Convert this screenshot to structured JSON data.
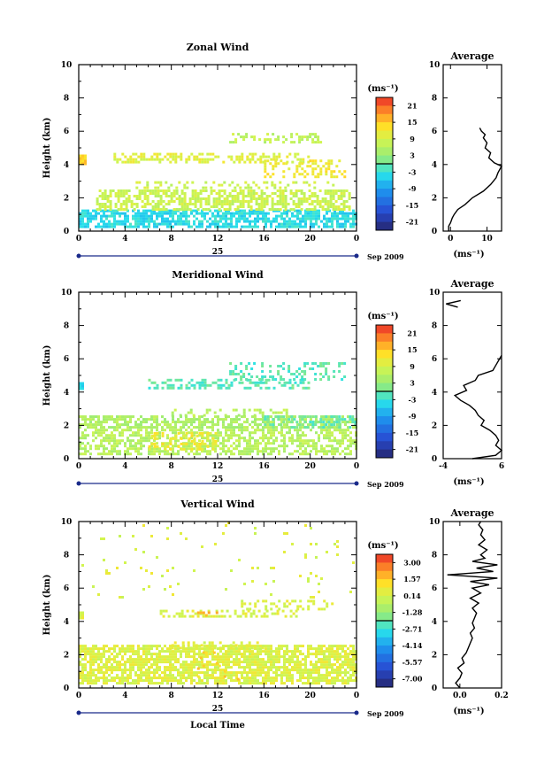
{
  "chart_data": [
    {
      "type": "heatmap",
      "title": "Zonal Wind",
      "ylabel": "Height (km)",
      "xticks": [
        "0",
        "4",
        "8",
        "12",
        "16",
        "20",
        "0"
      ],
      "yticks": [
        "0",
        "2",
        "4",
        "6",
        "8",
        "10"
      ],
      "xlim": [
        0,
        24
      ],
      "ylim": [
        0,
        10
      ],
      "date_day": "25",
      "date_month": "Sep 2009",
      "colorbar": {
        "unit": "(ms⁻¹)",
        "ticks": [
          "21",
          "15",
          "9",
          "3",
          "-3",
          "-9",
          "-15",
          "-21"
        ],
        "range": [
          -24,
          24
        ]
      },
      "layers": [
        {
          "x0": 0.0,
          "x1": 24.0,
          "y0": 0.3,
          "y1": 1.3,
          "value": -4,
          "density": 0.72
        },
        {
          "x0": 1.5,
          "x1": 23.5,
          "y0": 1.3,
          "y1": 2.5,
          "value": 8,
          "density": 0.62
        },
        {
          "x0": 4.0,
          "x1": 22.0,
          "y0": 2.5,
          "y1": 3.0,
          "value": 8,
          "density": 0.25
        },
        {
          "x0": 3.0,
          "x1": 20.0,
          "y0": 4.1,
          "y1": 4.7,
          "value": 10,
          "density": 0.45
        },
        {
          "x0": 16.0,
          "x1": 23.0,
          "y0": 3.3,
          "y1": 4.3,
          "value": 12,
          "density": 0.35
        },
        {
          "x0": 13.0,
          "x1": 21.0,
          "y0": 5.3,
          "y1": 5.9,
          "value": 7,
          "density": 0.35
        },
        {
          "x0": 0.0,
          "x1": 0.5,
          "y0": 4.0,
          "y1": 4.6,
          "value": 14,
          "density": 1.0
        }
      ],
      "average_profile": {
        "title": "Average",
        "xlabel": "(ms⁻¹)",
        "xticks": [
          "0",
          "10"
        ],
        "xlim": [
          -2,
          14
        ],
        "height": [
          0.0,
          0.3,
          0.5,
          0.8,
          1.0,
          1.3,
          1.6,
          2.0,
          2.4,
          2.8,
          3.2,
          3.5,
          3.7,
          3.9,
          4.1,
          4.4,
          4.7,
          5.0,
          5.3,
          5.6,
          5.8,
          6.0,
          6.2
        ],
        "values": [
          -0.5,
          -0.5,
          0.0,
          0.5,
          1.0,
          2.0,
          4.0,
          6.0,
          9.0,
          11.0,
          12.5,
          13.0,
          13.5,
          14.0,
          12.0,
          10.5,
          11.0,
          9.5,
          10.0,
          9.0,
          9.5,
          8.5,
          8.0
        ]
      }
    },
    {
      "type": "heatmap",
      "title": "Meridional Wind",
      "ylabel": "Height (km)",
      "xticks": [
        "0",
        "4",
        "8",
        "12",
        "16",
        "20",
        "0"
      ],
      "yticks": [
        "0",
        "2",
        "4",
        "6",
        "8",
        "10"
      ],
      "xlim": [
        0,
        24
      ],
      "ylim": [
        0,
        10
      ],
      "date_day": "25",
      "date_month": "Sep 2009",
      "colorbar": {
        "unit": "(ms⁻¹)",
        "ticks": [
          "21",
          "15",
          "9",
          "3",
          "-3",
          "-9",
          "-15",
          "-21"
        ],
        "range": [
          -24,
          24
        ]
      },
      "layers": [
        {
          "x0": 0.0,
          "x1": 24.0,
          "y0": 0.2,
          "y1": 1.8,
          "value": 6,
          "density": 0.58
        },
        {
          "x0": 6.0,
          "x1": 12.0,
          "y0": 0.5,
          "y1": 1.6,
          "value": 12,
          "density": 0.4
        },
        {
          "x0": 0.0,
          "x1": 24.0,
          "y0": 1.8,
          "y1": 2.6,
          "value": 5,
          "density": 0.62
        },
        {
          "x0": 16.0,
          "x1": 24.0,
          "y0": 1.8,
          "y1": 2.6,
          "value": 0,
          "density": 0.4
        },
        {
          "x0": 8.0,
          "x1": 18.0,
          "y0": 2.6,
          "y1": 3.0,
          "value": 6,
          "density": 0.3
        },
        {
          "x0": 6.0,
          "x1": 20.0,
          "y0": 4.2,
          "y1": 4.8,
          "value": -1,
          "density": 0.4
        },
        {
          "x0": 13.0,
          "x1": 23.0,
          "y0": 4.8,
          "y1": 5.8,
          "value": -1,
          "density": 0.28
        },
        {
          "x0": 0.0,
          "x1": 0.4,
          "y0": 4.1,
          "y1": 4.6,
          "value": -4,
          "density": 1.0
        }
      ],
      "average_profile": {
        "title": "Average",
        "xlabel": "(ms⁻¹)",
        "xticks": [
          "-4",
          "6"
        ],
        "xlim": [
          -4,
          6
        ],
        "height": [
          0.0,
          0.2,
          0.5,
          0.8,
          1.1,
          1.4,
          1.7,
          2.0,
          2.3,
          2.6,
          2.9,
          3.2,
          3.5,
          3.8,
          4.1,
          4.4,
          4.7,
          5.0,
          5.3,
          5.6,
          6.2
        ],
        "values": [
          1.0,
          5.0,
          6.0,
          5.0,
          5.5,
          5.0,
          4.0,
          2.5,
          3.0,
          2.0,
          1.5,
          0.5,
          -1.0,
          -2.0,
          0.0,
          -0.5,
          1.5,
          2.0,
          4.5,
          5.0,
          6.0
        ],
        "upper_height": [
          9.1,
          9.3,
          9.5
        ],
        "upper_values": [
          -1.5,
          -3.5,
          -1.0
        ]
      }
    },
    {
      "type": "heatmap",
      "title": "Vertical Wind",
      "ylabel": "Height (km)",
      "xlabel": "Local Time",
      "xticks": [
        "0",
        "4",
        "8",
        "12",
        "16",
        "20",
        "0"
      ],
      "yticks": [
        "0",
        "2",
        "4",
        "6",
        "8",
        "10"
      ],
      "xlim": [
        0,
        24
      ],
      "ylim": [
        0,
        10
      ],
      "date_day": "25",
      "date_month": "Sep 2009",
      "colorbar": {
        "unit": "(ms⁻¹)",
        "ticks": [
          "3.00",
          "1.57",
          "0.14",
          "-1.28",
          "-2.71",
          "-4.14",
          "-5.57",
          "-7.00"
        ],
        "range": [
          -7.7,
          3.7
        ]
      },
      "layers": [
        {
          "x0": 0.0,
          "x1": 24.0,
          "y0": 0.2,
          "y1": 2.6,
          "value": 0.3,
          "density": 0.75
        },
        {
          "x0": 8.0,
          "x1": 16.0,
          "y0": 2.4,
          "y1": 2.8,
          "value": 0.3,
          "density": 0.35
        },
        {
          "x0": 7.0,
          "x1": 19.0,
          "y0": 4.2,
          "y1": 4.7,
          "value": 0.3,
          "density": 0.4
        },
        {
          "x0": 10.0,
          "x1": 12.0,
          "y0": 4.3,
          "y1": 4.6,
          "value": 1.6,
          "density": 0.5
        },
        {
          "x0": 14.0,
          "x1": 22.0,
          "y0": 4.7,
          "y1": 5.3,
          "value": 0.3,
          "density": 0.3
        },
        {
          "x0": 0.0,
          "x1": 24.0,
          "y0": 5.4,
          "y1": 10.0,
          "value": 0.3,
          "density": 0.03
        },
        {
          "x0": 10.0,
          "x1": 14.0,
          "y0": 0.5,
          "y1": 2.2,
          "value": 1.2,
          "density": 0.1
        },
        {
          "x0": 0.0,
          "x1": 0.4,
          "y0": 4.1,
          "y1": 4.6,
          "value": 0.3,
          "density": 1.0
        }
      ],
      "average_profile": {
        "title": "Average",
        "xlabel": "(ms⁻¹)",
        "xticks": [
          "0.0",
          "0.2"
        ],
        "xlim": [
          -0.08,
          0.2
        ],
        "height": [
          0.0,
          0.3,
          0.6,
          0.9,
          1.2,
          1.5,
          1.8,
          2.1,
          2.4,
          2.7,
          3.0,
          3.3,
          3.6,
          3.9,
          4.2,
          4.5,
          4.8,
          5.1,
          5.4,
          5.7,
          6.0,
          6.2,
          6.4,
          6.6,
          6.8,
          7.0,
          7.2,
          7.4,
          7.6,
          7.8,
          8.0,
          8.3,
          8.6,
          8.9,
          9.2,
          9.5,
          9.8,
          10.0
        ],
        "values": [
          0.0,
          -0.02,
          0.0,
          0.01,
          -0.01,
          0.02,
          0.01,
          0.03,
          0.04,
          0.05,
          0.06,
          0.05,
          0.07,
          0.06,
          0.07,
          0.08,
          0.06,
          0.09,
          0.05,
          0.1,
          0.06,
          0.14,
          0.05,
          0.18,
          -0.06,
          0.16,
          0.08,
          0.18,
          0.06,
          0.12,
          0.1,
          0.13,
          0.09,
          0.12,
          0.1,
          0.11,
          0.09,
          0.1
        ]
      }
    }
  ]
}
